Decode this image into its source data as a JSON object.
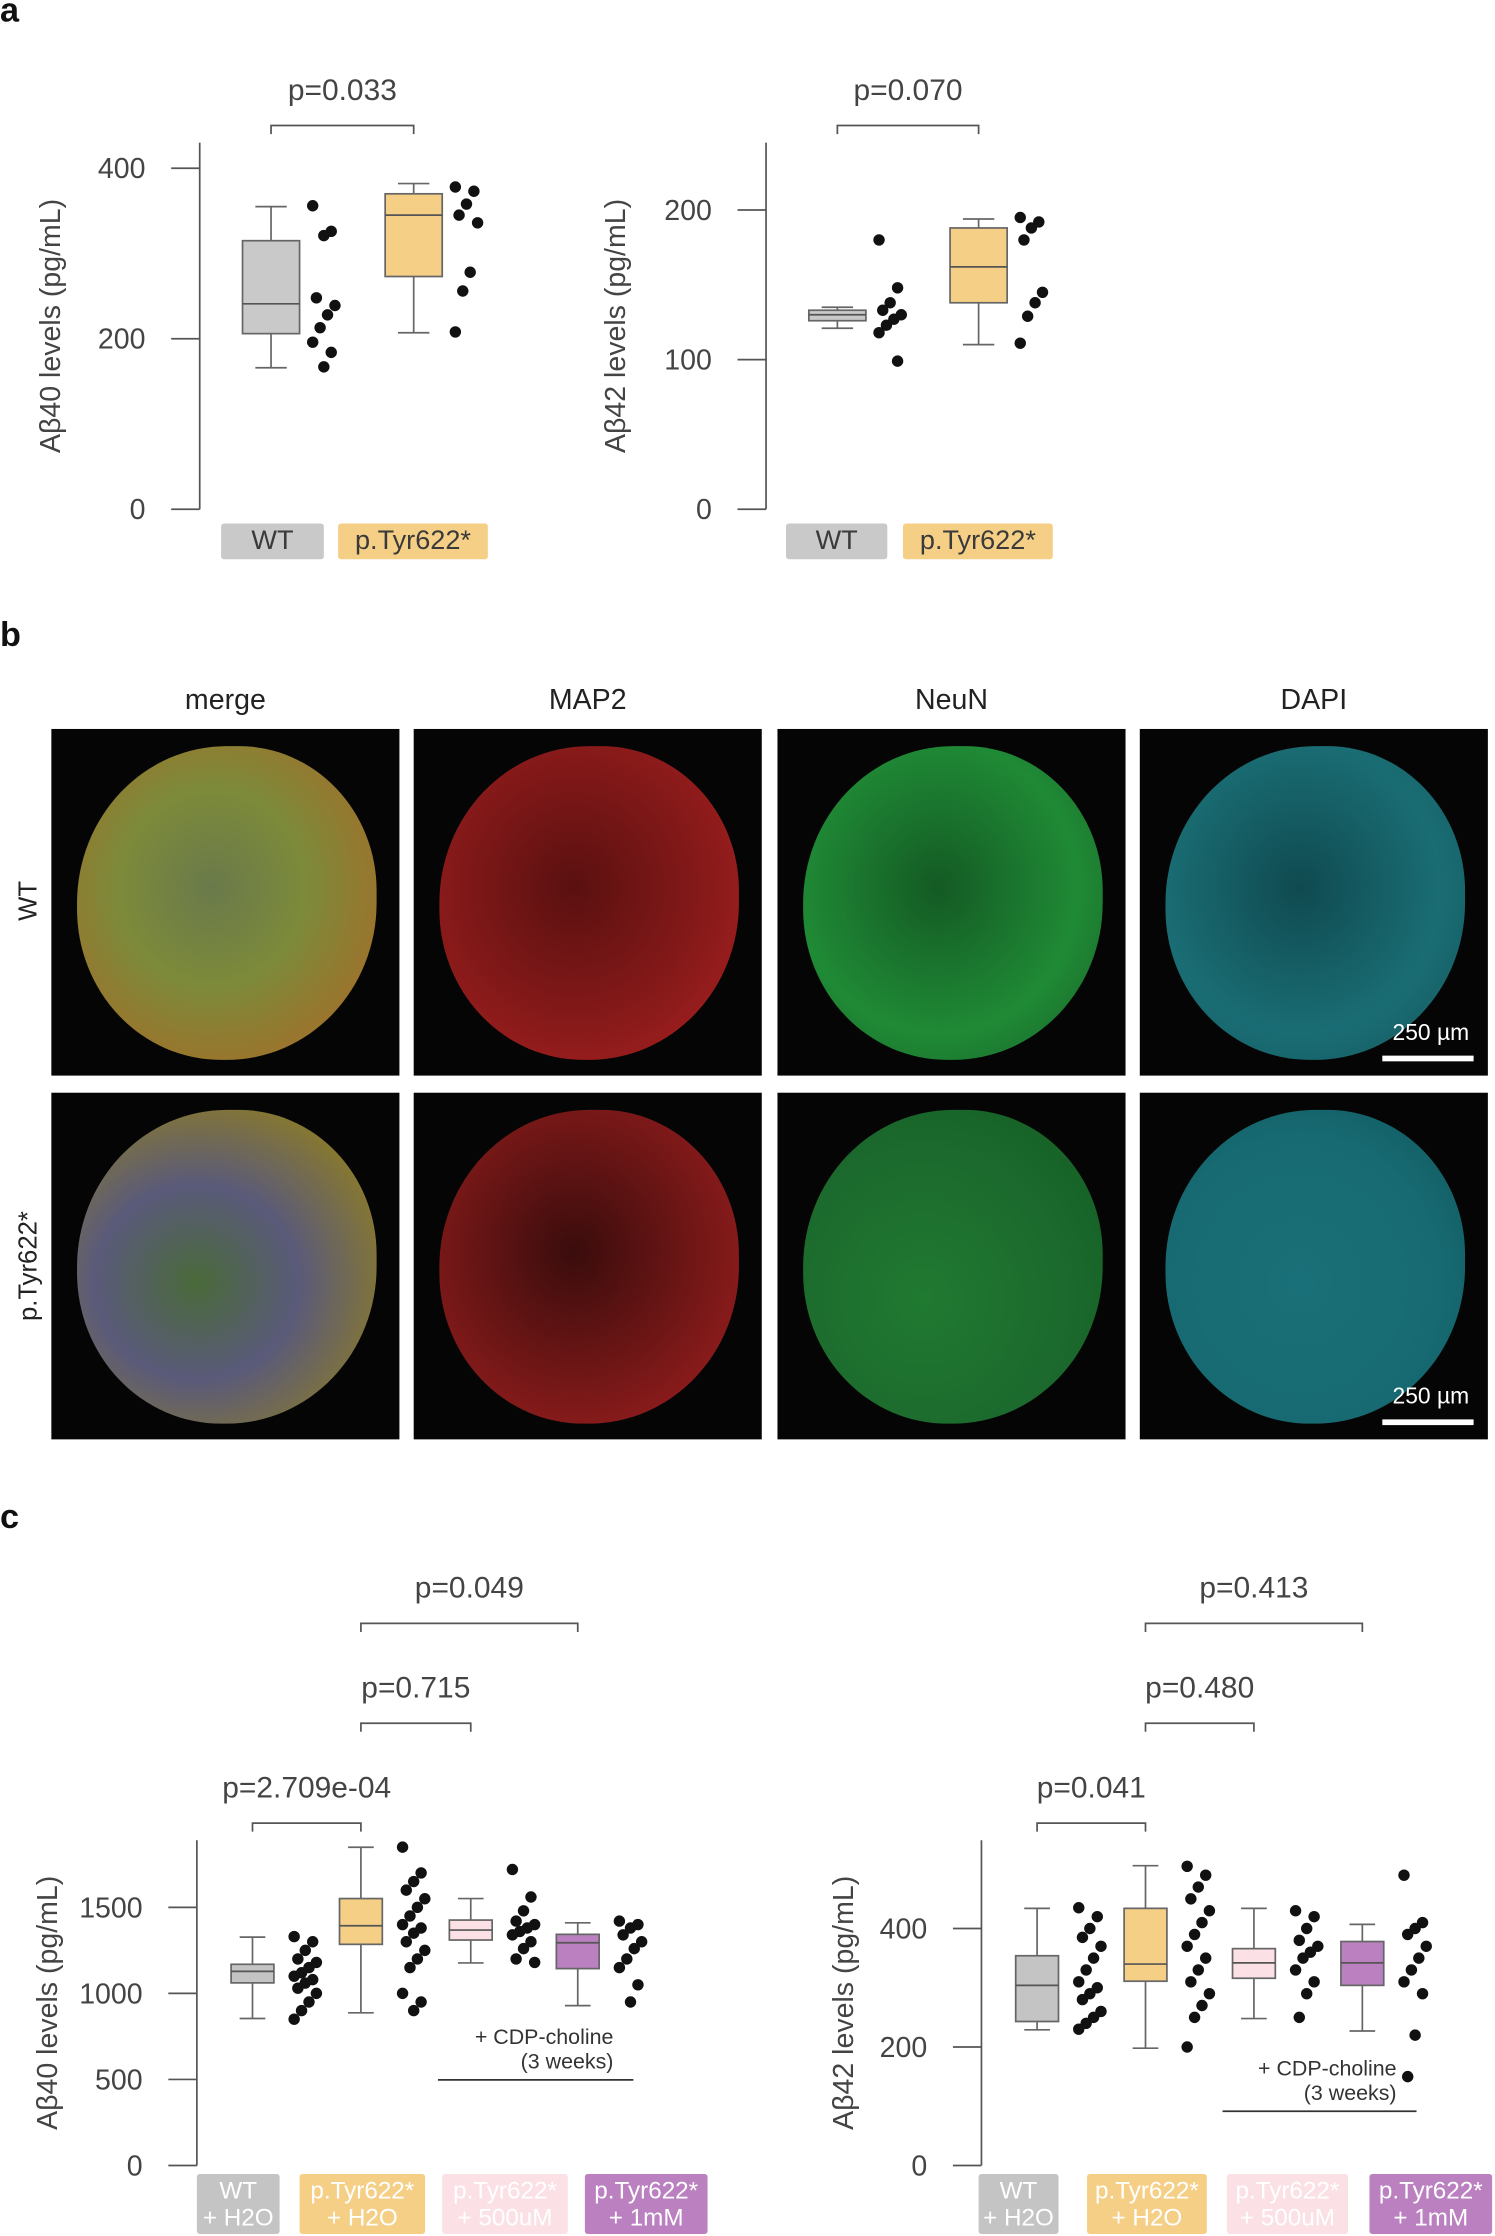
{
  "panels": [
    "a",
    "b",
    "c"
  ],
  "chart_data": [
    {
      "type": "box",
      "ylabel": "Aβ40 levels (pg/mL)",
      "ylim": [
        0,
        430
      ],
      "yticks": [
        0,
        200,
        400
      ],
      "categories": [
        "WT",
        "p.Tyr622*"
      ],
      "colors": [
        "#c9c9c9",
        "#f5cf86"
      ],
      "label_text_color": "#3a3a3a",
      "point_color": "#111111",
      "boxes": [
        {
          "min": 166,
          "q1": 206,
          "median": 241,
          "q3": 315,
          "max": 355
        },
        {
          "min": 207,
          "q1": 273,
          "median": 345,
          "q3": 370,
          "max": 382
        }
      ],
      "points": [
        [
          356,
          326,
          321,
          248,
          239,
          228,
          213,
          196,
          184,
          167
        ],
        [
          378,
          373,
          358,
          345,
          336,
          278,
          256,
          208
        ]
      ],
      "comparisons": [
        {
          "label": "p=0.033",
          "pair": [
            0,
            1
          ]
        }
      ]
    },
    {
      "type": "box",
      "ylabel": "Aβ42 levels (pg/mL)",
      "ylim": [
        0,
        245
      ],
      "yticks": [
        0,
        100,
        200
      ],
      "categories": [
        "WT",
        "p.Tyr622*"
      ],
      "colors": [
        "#c9c9c9",
        "#f5cf86"
      ],
      "label_text_color": "#3a3a3a",
      "point_color": "#111111",
      "boxes": [
        {
          "min": 121,
          "q1": 126,
          "median": 130,
          "q3": 133,
          "max": 135
        },
        {
          "min": 110,
          "q1": 138,
          "median": 162,
          "q3": 188,
          "max": 194
        }
      ],
      "points": [
        [
          180,
          148,
          138,
          133,
          130,
          127,
          123,
          118,
          99
        ],
        [
          195,
          192,
          188,
          180,
          145,
          138,
          129,
          111
        ]
      ],
      "comparisons": [
        {
          "label": "p=0.070",
          "pair": [
            0,
            1
          ]
        }
      ]
    },
    {
      "type": "box",
      "ylabel": "Aβ40 levels (pg/mL)",
      "ylim": [
        0,
        1890
      ],
      "yticks": [
        0,
        500,
        1000,
        1500
      ],
      "categories": [
        "WT\n+ H2O",
        "p.Tyr622*\n+ H2O",
        "p.Tyr622*\n+ 500uM",
        "p.Tyr622*\n+ 1mM"
      ],
      "colors": [
        "#c4c4c4",
        "#f5cf86",
        "#fbe1e6",
        "#bb80c0"
      ],
      "label_text_color": "#ffffff",
      "point_color": "#111111",
      "boxes": [
        {
          "min": 854,
          "q1": 1061,
          "median": 1128,
          "q3": 1169,
          "max": 1327
        },
        {
          "min": 887,
          "q1": 1285,
          "median": 1393,
          "q3": 1551,
          "max": 1849
        },
        {
          "min": 1177,
          "q1": 1310,
          "median": 1368,
          "q3": 1426,
          "max": 1551
        },
        {
          "min": 929,
          "q1": 1144,
          "median": 1294,
          "q3": 1343,
          "max": 1410
        }
      ],
      "points": [
        [
          1330,
          1300,
          1250,
          1200,
          1180,
          1150,
          1120,
          1100,
          1080,
          1060,
          1030,
          1000,
          950,
          900,
          850
        ],
        [
          1850,
          1700,
          1650,
          1600,
          1550,
          1500,
          1450,
          1400,
          1380,
          1350,
          1300,
          1250,
          1200,
          1150,
          1000,
          950,
          900
        ],
        [
          1720,
          1560,
          1480,
          1420,
          1400,
          1380,
          1360,
          1340,
          1300,
          1260,
          1200,
          1180
        ],
        [
          1420,
          1400,
          1380,
          1340,
          1300,
          1260,
          1200,
          1150,
          1050,
          950
        ]
      ],
      "comparisons": [
        {
          "label": "p=2.709e-04",
          "pair": [
            0,
            1
          ]
        },
        {
          "label": "p=0.715",
          "pair": [
            1,
            2
          ]
        },
        {
          "label": "p=0.049",
          "pair": [
            1,
            3
          ]
        }
      ],
      "annotation": {
        "text": "+ CDP-choline\n(3 weeks)",
        "span": [
          2,
          3
        ]
      }
    },
    {
      "type": "box",
      "ylabel": "Aβ42 levels (pg/mL)",
      "ylim": [
        0,
        549
      ],
      "yticks": [
        0,
        200,
        400
      ],
      "categories": [
        "WT\n+ H2O",
        "p.Tyr622*\n+ H2O",
        "p.Tyr622*\n+ 500uM",
        "p.Tyr622*\n+ 1mM"
      ],
      "colors": [
        "#c4c4c4",
        "#f5cf86",
        "#fbe1e6",
        "#bb80c0"
      ],
      "label_text_color": "#ffffff",
      "point_color": "#111111",
      "boxes": [
        {
          "min": 229,
          "q1": 243,
          "median": 304,
          "q3": 354,
          "max": 434
        },
        {
          "min": 198,
          "q1": 311,
          "median": 340,
          "q3": 434,
          "max": 506
        },
        {
          "min": 248,
          "q1": 316,
          "median": 342,
          "q3": 366,
          "max": 434
        },
        {
          "min": 227,
          "q1": 304,
          "median": 342,
          "q3": 378,
          "max": 407
        }
      ],
      "points": [
        [
          435,
          420,
          400,
          385,
          370,
          350,
          330,
          310,
          300,
          290,
          280,
          260,
          250,
          240,
          230
        ],
        [
          505,
          490,
          470,
          450,
          430,
          410,
          390,
          370,
          350,
          330,
          310,
          290,
          270,
          250,
          200
        ],
        [
          430,
          420,
          400,
          380,
          370,
          360,
          350,
          330,
          310,
          290,
          250
        ],
        [
          490,
          410,
          400,
          390,
          370,
          350,
          330,
          310,
          290,
          220,
          150
        ]
      ],
      "comparisons": [
        {
          "label": "p=0.041",
          "pair": [
            0,
            1
          ]
        },
        {
          "label": "p=0.480",
          "pair": [
            1,
            2
          ]
        },
        {
          "label": "p=0.413",
          "pair": [
            1,
            3
          ]
        }
      ],
      "annotation": {
        "text": "+ CDP-choline\n(3 weeks)",
        "span": [
          2,
          3
        ]
      }
    }
  ],
  "micrographs": {
    "columns": [
      "merge",
      "MAP2",
      "NeuN",
      "DAPI"
    ],
    "rows": [
      "WT",
      "p.Tyr622*"
    ],
    "scale_bar": "250 µm"
  }
}
